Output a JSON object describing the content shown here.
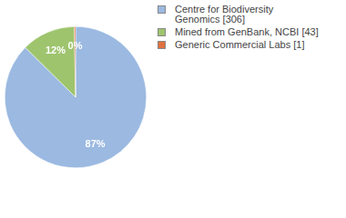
{
  "chart_data": {
    "type": "pie",
    "categories": [
      "Centre for Biodiversity Genomics [306]",
      "Mined from GenBank, NCBI [43]",
      "Generic Commercial Labs [1]"
    ],
    "values": [
      87.43,
      12.29,
      0.29
    ],
    "value_labels": [
      "87%",
      "12%",
      "0%"
    ],
    "colors": [
      "#9bb9e1",
      "#9ec46e",
      "#e0703f"
    ],
    "data_labels": true,
    "legend": "right"
  }
}
